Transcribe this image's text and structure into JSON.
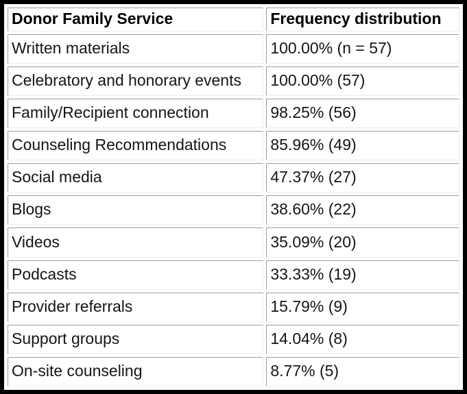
{
  "table": {
    "header": {
      "service": "Donor Family Service",
      "frequency": "Frequency distribution"
    },
    "rows": [
      {
        "service": "Written materials",
        "frequency": "100.00% (n = 57)"
      },
      {
        "service": "Celebratory and honorary events",
        "frequency": "100.00% (57)"
      },
      {
        "service": "Family/Recipient connection",
        "frequency": "98.25% (56)"
      },
      {
        "service": "Counseling Recommendations",
        "frequency": "85.96% (49)"
      },
      {
        "service": "Social media",
        "frequency": "47.37% (27)"
      },
      {
        "service": "Blogs",
        "frequency": "38.60% (22)"
      },
      {
        "service": "Videos",
        "frequency": "35.09% (20)"
      },
      {
        "service": "Podcasts",
        "frequency": "33.33% (19)"
      },
      {
        "service": "Provider referrals",
        "frequency": "15.79% (9)"
      },
      {
        "service": "Support groups",
        "frequency": "14.04% (8)"
      },
      {
        "service": "On-site counseling",
        "frequency": "8.77% (5)"
      }
    ]
  },
  "colors": {
    "outer_border": "#000000",
    "cell_border_dark": "#9d9d9d",
    "cell_border_light": "#ececec",
    "background": "#ffffff",
    "text": "#151515"
  },
  "chart_data": {
    "type": "table",
    "title": "",
    "columns": [
      "Donor Family Service",
      "Frequency distribution"
    ],
    "rows": [
      [
        "Written materials",
        "100.00% (n = 57)"
      ],
      [
        "Celebratory and honorary events",
        "100.00% (57)"
      ],
      [
        "Family/Recipient connection",
        "98.25% (56)"
      ],
      [
        "Counseling Recommendations",
        "85.96% (49)"
      ],
      [
        "Social media",
        "47.37% (27)"
      ],
      [
        "Blogs",
        "38.60% (22)"
      ],
      [
        "Videos",
        "35.09% (20)"
      ],
      [
        "Podcasts",
        "33.33% (19)"
      ],
      [
        "Provider referrals",
        "15.79% (9)"
      ],
      [
        "Support groups",
        "14.04% (8)"
      ],
      [
        "On-site counseling",
        "8.77% (5)"
      ]
    ],
    "percentages": [
      100.0,
      100.0,
      98.25,
      85.96,
      47.37,
      38.6,
      35.09,
      33.33,
      15.79,
      14.04,
      8.77
    ],
    "counts": [
      57,
      57,
      56,
      49,
      27,
      22,
      20,
      19,
      9,
      8,
      5
    ],
    "n_total": 57
  }
}
